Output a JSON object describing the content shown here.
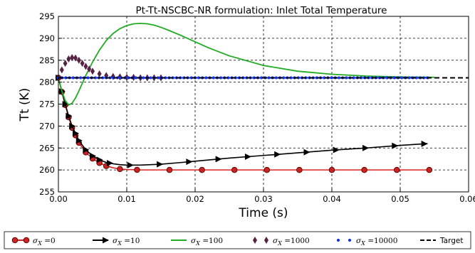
{
  "chart_data": {
    "type": "line",
    "title": "Pt-Tt-NSCBC-NR formulation:  Inlet Total Temperature",
    "xlabel": "Time (s)",
    "ylabel": "Tt (K)",
    "xlim": [
      0.0,
      0.06
    ],
    "ylim": [
      255,
      295
    ],
    "x_ticks": [
      "0.00",
      "0.01",
      "0.02",
      "0.03",
      "0.04",
      "0.05",
      "0.06"
    ],
    "y_ticks": [
      "255",
      "260",
      "265",
      "270",
      "275",
      "280",
      "285",
      "290",
      "295"
    ],
    "grid": true,
    "legend_position": "below",
    "series": [
      {
        "name": "σX =0",
        "legend_symbol": "σ",
        "legend_sub": "X",
        "legend_suffix": " =0",
        "color": "#dd2222",
        "marker_color": "#cc2222",
        "marker": "circle",
        "x": [
          0.0,
          0.0005,
          0.001,
          0.0015,
          0.002,
          0.003,
          0.004,
          0.005,
          0.006,
          0.007,
          0.008,
          0.009,
          0.01,
          0.012,
          0.015,
          0.02,
          0.025,
          0.03,
          0.035,
          0.04,
          0.045,
          0.05,
          0.054
        ],
        "y": [
          281,
          277.8,
          274.8,
          272.0,
          269.6,
          266.2,
          264.0,
          262.6,
          261.6,
          260.9,
          260.5,
          260.2,
          260.1,
          260.0,
          260.0,
          260.0,
          260.0,
          260.0,
          260.0,
          260.0,
          260.0,
          260.0,
          260.0
        ]
      },
      {
        "name": "σX =10",
        "legend_symbol": "σ",
        "legend_sub": "X",
        "legend_suffix": " =10",
        "color": "#000000",
        "marker_color": "#000000",
        "marker": "triangle-right",
        "x": [
          0.0,
          0.0005,
          0.001,
          0.0015,
          0.002,
          0.003,
          0.004,
          0.005,
          0.006,
          0.007,
          0.008,
          0.009,
          0.01,
          0.012,
          0.015,
          0.018,
          0.02,
          0.025,
          0.03,
          0.035,
          0.04,
          0.045,
          0.05,
          0.054
        ],
        "y": [
          281,
          277.9,
          275.0,
          272.3,
          270.0,
          266.7,
          264.6,
          263.2,
          262.3,
          261.7,
          261.4,
          261.2,
          261.1,
          261.1,
          261.3,
          261.7,
          262.0,
          262.7,
          263.3,
          263.9,
          264.5,
          265.0,
          265.6,
          266.0
        ]
      },
      {
        "name": "σX =100",
        "legend_symbol": "σ",
        "legend_sub": "X",
        "legend_suffix": " =100",
        "color": "#22aa22",
        "marker_color": "#22aa22",
        "marker": "none",
        "x": [
          0.0,
          0.0005,
          0.001,
          0.0015,
          0.002,
          0.0025,
          0.003,
          0.004,
          0.005,
          0.006,
          0.007,
          0.008,
          0.009,
          0.01,
          0.011,
          0.012,
          0.013,
          0.014,
          0.015,
          0.016,
          0.018,
          0.02,
          0.022,
          0.025,
          0.03,
          0.035,
          0.04,
          0.045,
          0.05,
          0.055
        ],
        "y": [
          281,
          278.0,
          275.8,
          274.8,
          275.2,
          276.4,
          278.0,
          281.5,
          284.6,
          287.3,
          289.5,
          291.1,
          292.2,
          292.9,
          293.3,
          293.4,
          293.3,
          293.0,
          292.5,
          291.9,
          290.6,
          289.2,
          287.8,
          286.0,
          283.8,
          282.5,
          281.8,
          281.4,
          281.2,
          281.1
        ]
      },
      {
        "name": "σX =1000",
        "legend_symbol": "σ",
        "legend_sub": "X",
        "legend_suffix": " =1000",
        "color": "#552244",
        "marker_color": "#552244",
        "marker": "diamond",
        "x": [
          0.0,
          0.0005,
          0.001,
          0.0015,
          0.002,
          0.0025,
          0.003,
          0.0035,
          0.004,
          0.0045,
          0.005,
          0.006,
          0.007,
          0.008,
          0.009,
          0.01,
          0.011,
          0.012,
          0.013,
          0.014,
          0.015
        ],
        "y": [
          281,
          282.8,
          284.3,
          285.3,
          285.6,
          285.5,
          285.0,
          284.3,
          283.6,
          283.0,
          282.5,
          281.9,
          281.5,
          281.3,
          281.2,
          281.1,
          281.1,
          281.0,
          281.0,
          281.0,
          281.0
        ]
      },
      {
        "name": "σX =10000",
        "legend_symbol": "σ",
        "legend_sub": "X",
        "legend_suffix": " =10000",
        "color": "#1133ee",
        "marker_color": "#1133ee",
        "marker": "dot",
        "x": [
          0.0,
          0.054
        ],
        "y": [
          281,
          281
        ]
      },
      {
        "name": "Target",
        "legend_label": "Target",
        "color": "#000000",
        "marker_color": "#000000",
        "marker": "none",
        "dashed": true,
        "x": [
          0.0,
          0.06
        ],
        "y": [
          281,
          281
        ]
      }
    ]
  }
}
